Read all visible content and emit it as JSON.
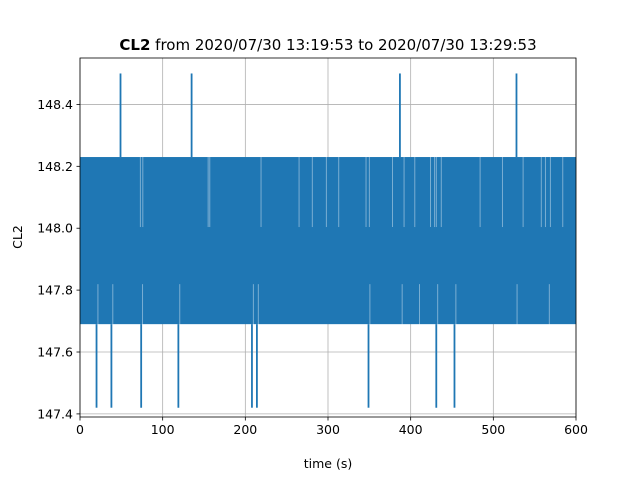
{
  "chart_data": {
    "type": "line",
    "title_bold": "CL2",
    "title_rest": " from 2020/07/30 13:19:53 to 2020/07/30 13:29:53",
    "xlabel": "time (s)",
    "ylabel": "CL2",
    "xlim": [
      0,
      600
    ],
    "ylim": [
      147.39,
      148.55
    ],
    "x_ticks": [
      0,
      100,
      200,
      300,
      400,
      500,
      600
    ],
    "x_tick_labels": [
      "0",
      "100",
      "200",
      "300",
      "400",
      "500",
      "600"
    ],
    "y_ticks": [
      147.4,
      147.6,
      147.8,
      148.0,
      148.2,
      148.4
    ],
    "y_tick_labels": [
      "147.4",
      "147.6",
      "147.8",
      "148.0",
      "148.2",
      "148.4"
    ],
    "grid": true,
    "series": [
      {
        "color": "#1f77b4",
        "band_low": 147.69,
        "band_high": 148.23,
        "spikes_high": [
          {
            "x": 49,
            "y": 148.5
          },
          {
            "x": 135,
            "y": 148.5
          },
          {
            "x": 387,
            "y": 148.5
          },
          {
            "x": 528,
            "y": 148.5
          }
        ],
        "spikes_low": [
          {
            "x": 20,
            "y": 147.42
          },
          {
            "x": 38,
            "y": 147.42
          },
          {
            "x": 74,
            "y": 147.42
          },
          {
            "x": 119,
            "y": 147.42
          },
          {
            "x": 208,
            "y": 147.42
          },
          {
            "x": 214,
            "y": 147.42
          },
          {
            "x": 349,
            "y": 147.42
          },
          {
            "x": 431,
            "y": 147.42
          },
          {
            "x": 453,
            "y": 147.42
          }
        ],
        "gaps_top": [
          73,
          76,
          155,
          157,
          219,
          265,
          281,
          298,
          313,
          346,
          350,
          378,
          392,
          405,
          424,
          429,
          431,
          437,
          484,
          511,
          536,
          558,
          563,
          569,
          584
        ],
        "gaps_bottom": [
          20,
          38,
          74,
          119,
          208,
          214,
          349,
          388,
          409,
          431,
          453,
          527,
          566
        ]
      }
    ]
  }
}
